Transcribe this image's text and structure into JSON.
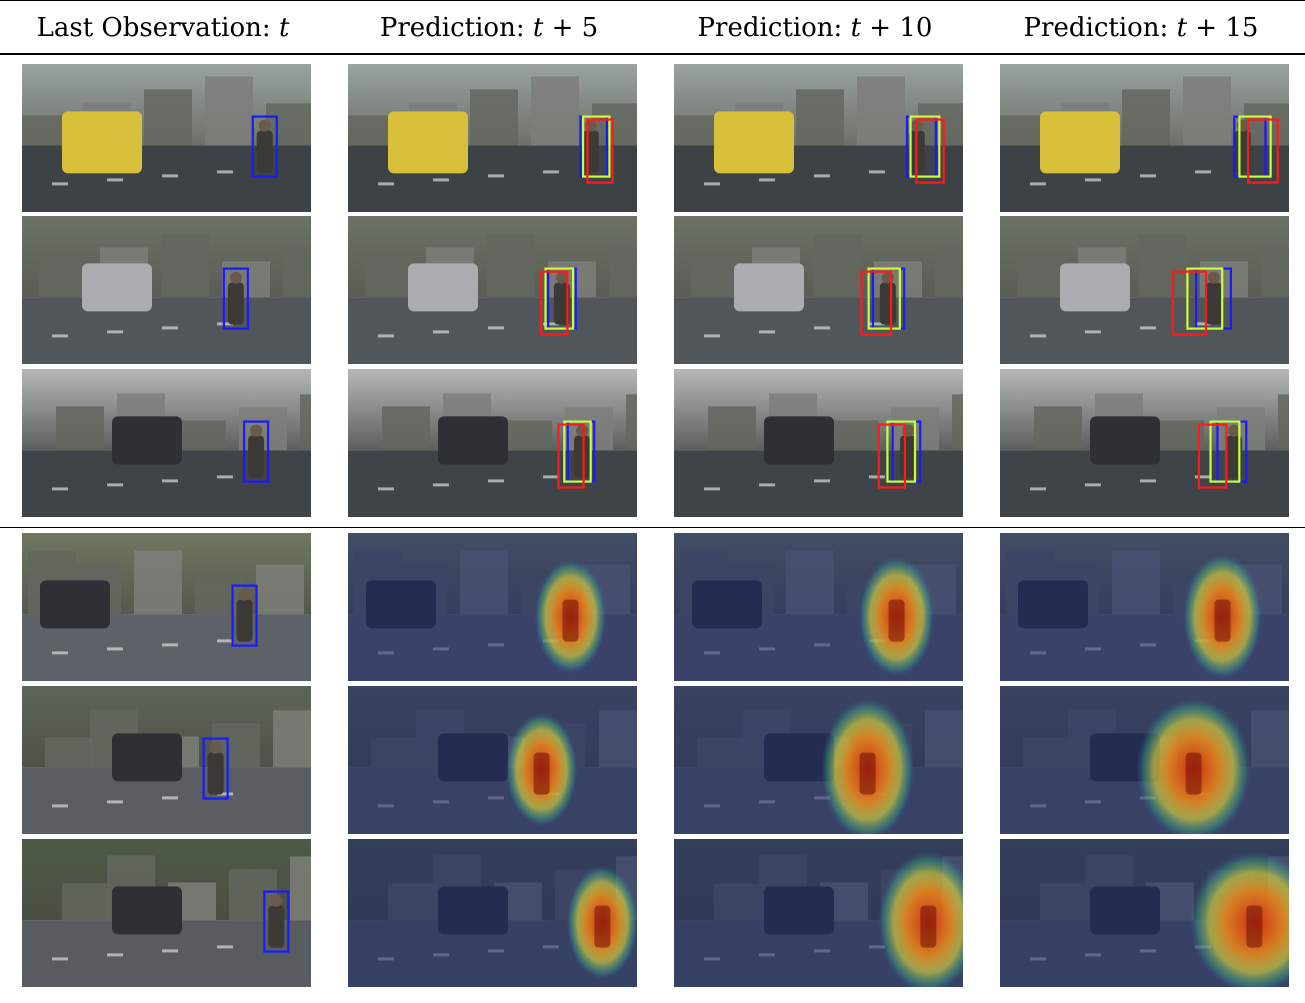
{
  "header": {
    "columns": [
      {
        "text": "Last Observation: ",
        "var": "t",
        "suffix": ""
      },
      {
        "text": "Prediction: ",
        "var": "t",
        "suffix": " + 5"
      },
      {
        "text": "Prediction: ",
        "var": "t",
        "suffix": " + 10"
      },
      {
        "text": "Prediction: ",
        "var": "t",
        "suffix": " + 15"
      }
    ]
  },
  "legend_colors": {
    "observation_box": "#1a1aff",
    "ground_truth_box": "#c8ff3c",
    "prediction_box": "#ff1a1a"
  },
  "sections": [
    {
      "kind": "bounding-box-forecast",
      "rows": [
        {
          "scene": "street-with-yellow-bus",
          "pedestrian": 0.84,
          "frames": [
            {
              "boxes": [
                "blue"
              ],
              "shift": 0.0,
              "scale": 1.0
            },
            {
              "boxes": [
                "blue",
                "green",
                "red"
              ],
              "shift": 0.03,
              "scale": 1.1
            },
            {
              "boxes": [
                "blue",
                "green",
                "red"
              ],
              "shift": 0.04,
              "scale": 1.2
            },
            {
              "boxes": [
                "blue",
                "green",
                "red"
              ],
              "shift": 0.06,
              "scale": 1.3
            }
          ]
        },
        {
          "scene": "parked-silver-car",
          "pedestrian": 0.74,
          "frames": [
            {
              "boxes": [
                "blue"
              ],
              "shift": 0.0,
              "scale": 1.0
            },
            {
              "boxes": [
                "blue",
                "green",
                "red"
              ],
              "shift": -0.03,
              "scale": 1.15
            },
            {
              "boxes": [
                "blue",
                "green",
                "red"
              ],
              "shift": -0.05,
              "scale": 1.3
            },
            {
              "boxes": [
                "blue",
                "green",
                "red"
              ],
              "shift": -0.1,
              "scale": 1.45
            }
          ]
        },
        {
          "scene": "night-road-with-car",
          "pedestrian": 0.81,
          "frames": [
            {
              "boxes": [
                "blue"
              ],
              "shift": 0.0,
              "scale": 1.0
            },
            {
              "boxes": [
                "blue",
                "green",
                "red"
              ],
              "shift": -0.04,
              "scale": 1.1
            },
            {
              "boxes": [
                "blue",
                "green",
                "red"
              ],
              "shift": -0.06,
              "scale": 1.15
            },
            {
              "boxes": [
                "blue",
                "green",
                "red"
              ],
              "shift": -0.08,
              "scale": 1.2
            }
          ]
        }
      ]
    },
    {
      "kind": "heatmap-forecast",
      "rows": [
        {
          "scene": "hatchback-rear-view",
          "pedestrian": 0.77,
          "frames": [
            {
              "boxes": [
                "blue"
              ],
              "spread": 0
            },
            {
              "heat": true,
              "spread": 1.0
            },
            {
              "heat": true,
              "spread": 1.05
            },
            {
              "heat": true,
              "spread": 1.1
            }
          ]
        },
        {
          "scene": "sidewalk-with-bollards",
          "pedestrian": 0.67,
          "frames": [
            {
              "boxes": [
                "blue"
              ],
              "spread": 0
            },
            {
              "heat": true,
              "spread": 1.0
            },
            {
              "heat": true,
              "spread": 1.3
            },
            {
              "heat": true,
              "spread": 1.6
            }
          ]
        },
        {
          "scene": "road-with-white-car",
          "pedestrian": 0.88,
          "frames": [
            {
              "boxes": [
                "blue"
              ],
              "spread": 0
            },
            {
              "heat": true,
              "spread": 1.0
            },
            {
              "heat": true,
              "spread": 1.4
            },
            {
              "heat": true,
              "spread": 1.8
            }
          ]
        }
      ]
    }
  ]
}
